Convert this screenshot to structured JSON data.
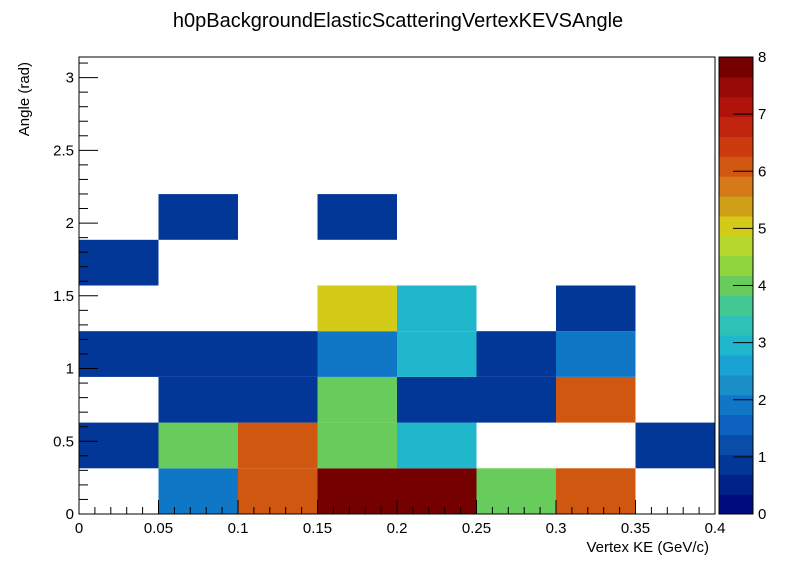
{
  "chart_data": {
    "type": "heatmap",
    "title": "h0pBackgroundElasticScatteringVertexKEVSAngle",
    "xlabel": "Vertex KE (GeV/c)",
    "ylabel": "Angle (rad)",
    "xlim": [
      0,
      0.4
    ],
    "ylim": [
      0,
      3.14159
    ],
    "x_bin_edges": [
      0,
      0.05,
      0.1,
      0.15,
      0.2,
      0.25,
      0.3,
      0.35,
      0.4
    ],
    "y_bin_width": 0.314159,
    "x_ticks": [
      0,
      0.05,
      0.1,
      0.15,
      0.2,
      0.25,
      0.3,
      0.35,
      0.4
    ],
    "x_tick_labels": [
      "0",
      "0.05",
      "0.1",
      "0.15",
      "0.2",
      "0.25",
      "0.3",
      "0.35",
      "0.4"
    ],
    "y_ticks": [
      0,
      0.5,
      1,
      1.5,
      2,
      2.5,
      3
    ],
    "y_tick_labels": [
      "0",
      "0.5",
      "1",
      "1.5",
      "2",
      "2.5",
      "3"
    ],
    "zlim": [
      0,
      8
    ],
    "z_ticks": [
      0,
      1,
      2,
      3,
      4,
      5,
      6,
      7,
      8
    ],
    "z_tick_labels": [
      "0",
      "1",
      "2",
      "3",
      "4",
      "5",
      "6",
      "7",
      "8"
    ],
    "grid": false,
    "cells": [
      {
        "ix": 1,
        "iy": 0,
        "value": 2
      },
      {
        "ix": 2,
        "iy": 0,
        "value": 6
      },
      {
        "ix": 3,
        "iy": 0,
        "value": 8
      },
      {
        "ix": 4,
        "iy": 0,
        "value": 8
      },
      {
        "ix": 5,
        "iy": 0,
        "value": 4
      },
      {
        "ix": 6,
        "iy": 0,
        "value": 6
      },
      {
        "ix": 0,
        "iy": 1,
        "value": 1
      },
      {
        "ix": 1,
        "iy": 1,
        "value": 4
      },
      {
        "ix": 2,
        "iy": 1,
        "value": 6
      },
      {
        "ix": 3,
        "iy": 1,
        "value": 4
      },
      {
        "ix": 4,
        "iy": 1,
        "value": 3
      },
      {
        "ix": 7,
        "iy": 1,
        "value": 1
      },
      {
        "ix": 1,
        "iy": 2,
        "value": 1
      },
      {
        "ix": 2,
        "iy": 2,
        "value": 1
      },
      {
        "ix": 3,
        "iy": 2,
        "value": 4
      },
      {
        "ix": 4,
        "iy": 2,
        "value": 1
      },
      {
        "ix": 5,
        "iy": 2,
        "value": 1
      },
      {
        "ix": 6,
        "iy": 2,
        "value": 6
      },
      {
        "ix": 0,
        "iy": 3,
        "value": 1
      },
      {
        "ix": 1,
        "iy": 3,
        "value": 1
      },
      {
        "ix": 2,
        "iy": 3,
        "value": 1
      },
      {
        "ix": 3,
        "iy": 3,
        "value": 2
      },
      {
        "ix": 4,
        "iy": 3,
        "value": 3
      },
      {
        "ix": 5,
        "iy": 3,
        "value": 1
      },
      {
        "ix": 6,
        "iy": 3,
        "value": 2
      },
      {
        "ix": 3,
        "iy": 4,
        "value": 5
      },
      {
        "ix": 4,
        "iy": 4,
        "value": 3
      },
      {
        "ix": 6,
        "iy": 4,
        "value": 1
      },
      {
        "ix": 0,
        "iy": 5,
        "value": 1
      },
      {
        "ix": 1,
        "iy": 6,
        "value": 1
      },
      {
        "ix": 3,
        "iy": 6,
        "value": 1
      }
    ],
    "palette": [
      "#000c7d",
      "#002389",
      "#023797",
      "#0a4caa",
      "#0d61bf",
      "#1077c7",
      "#1a8ec9",
      "#1ba2d4",
      "#20b6cc",
      "#2cc2b8",
      "#44c893",
      "#68cc5c",
      "#8fd53e",
      "#b5d72e",
      "#d3cb18",
      "#cfa016",
      "#d5791a",
      "#d0570f",
      "#cc3b10",
      "#c2250f",
      "#b0130b",
      "#960a07",
      "#740000"
    ]
  }
}
